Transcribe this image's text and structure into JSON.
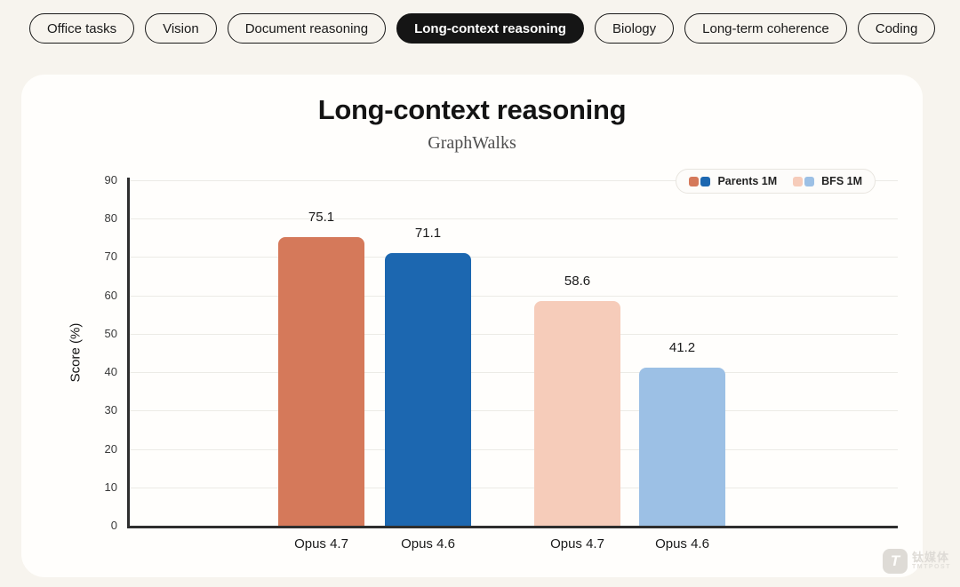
{
  "page": {
    "background": "#f7f4ee",
    "card_background": "#fffefc"
  },
  "tabs": [
    {
      "label": "Office tasks",
      "active": false
    },
    {
      "label": "Vision",
      "active": false
    },
    {
      "label": "Document reasoning",
      "active": false
    },
    {
      "label": "Long-context reasoning",
      "active": true
    },
    {
      "label": "Biology",
      "active": false
    },
    {
      "label": "Long-term coherence",
      "active": false
    },
    {
      "label": "Coding",
      "active": false
    }
  ],
  "chart_data": {
    "type": "bar",
    "title": "Long-context reasoning",
    "subtitle": "GraphWalks",
    "ylabel": "Score (%)",
    "ylim": [
      0,
      90
    ],
    "ytick_step": 10,
    "grid": true,
    "legend_position": "top-right",
    "categories": [
      "Opus 4.7",
      "Opus 4.6",
      "Opus 4.7",
      "Opus 4.6"
    ],
    "bars": [
      {
        "category": "Opus 4.7",
        "series": "Parents 1M",
        "value": 75.1,
        "color": "#d5795a"
      },
      {
        "category": "Opus 4.6",
        "series": "Parents 1M",
        "value": 71.1,
        "color": "#1c67b0"
      },
      {
        "category": "Opus 4.7",
        "series": "BFS 1M",
        "value": 58.6,
        "color": "#f6ccba"
      },
      {
        "category": "Opus 4.6",
        "series": "BFS 1M",
        "value": 41.2,
        "color": "#9cc0e5"
      }
    ],
    "series": [
      {
        "name": "Parents 1M",
        "values": [
          75.1,
          71.1
        ],
        "colors": [
          "#d5795a",
          "#1c67b0"
        ]
      },
      {
        "name": "BFS 1M",
        "values": [
          58.6,
          41.2
        ],
        "colors": [
          "#f6ccba",
          "#9cc0e5"
        ]
      }
    ],
    "legend": [
      {
        "label": "Parents 1M",
        "swatches": [
          "#d5795a",
          "#1c67b0"
        ]
      },
      {
        "label": "BFS 1M",
        "swatches": [
          "#f6ccba",
          "#9cc0e5"
        ]
      }
    ]
  },
  "watermark": {
    "logo_letter": "T",
    "name_cn": "钛媒体",
    "name_en": "TMTPOST"
  }
}
